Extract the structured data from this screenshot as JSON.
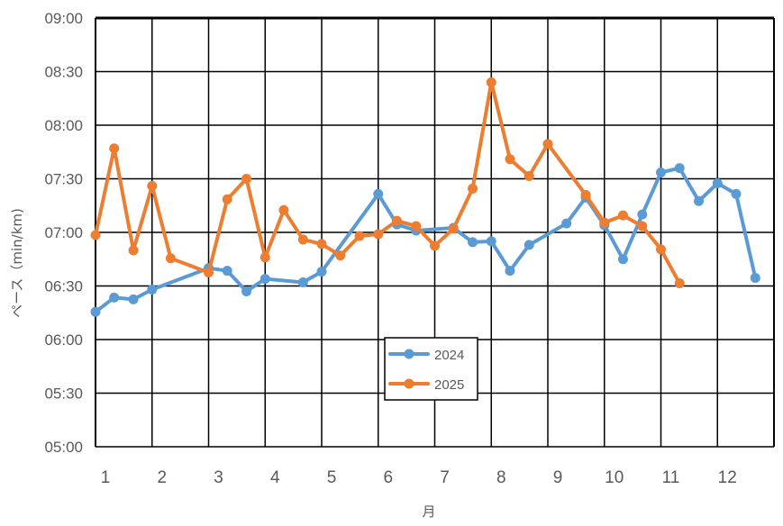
{
  "chart_data": {
    "type": "line",
    "xlabel": "月",
    "ylabel": "ペース（min/km)",
    "x_ticks": [
      "1",
      "2",
      "3",
      "4",
      "5",
      "6",
      "7",
      "8",
      "9",
      "10",
      "11",
      "12"
    ],
    "xlim": [
      1,
      13
    ],
    "y_ticks": [
      "05:00",
      "05:30",
      "06:00",
      "06:30",
      "07:00",
      "07:30",
      "08:00",
      "08:30",
      "09:00"
    ],
    "ylim_minutes": [
      300,
      540
    ],
    "grid": true,
    "legend_position": "bottom-center",
    "series": [
      {
        "name": "2024",
        "color": "#5b9bd5",
        "points": [
          [
            1.0,
            375.5
          ],
          [
            1.33,
            383.5
          ],
          [
            1.67,
            382.5
          ],
          [
            2.0,
            388.0
          ],
          [
            3.0,
            400.0
          ],
          [
            3.33,
            398.5
          ],
          [
            3.67,
            387.0
          ],
          [
            4.0,
            394.0
          ],
          [
            4.67,
            392.0
          ],
          [
            5.0,
            398.0
          ],
          [
            6.0,
            441.5
          ],
          [
            6.33,
            424.5
          ],
          [
            6.67,
            421.0
          ],
          [
            7.33,
            422.5
          ],
          [
            7.67,
            414.5
          ],
          [
            8.0,
            415.0
          ],
          [
            8.33,
            398.5
          ],
          [
            8.67,
            413.0
          ],
          [
            9.33,
            425.0
          ],
          [
            9.67,
            439.5
          ],
          [
            10.0,
            424.0
          ],
          [
            10.33,
            405.0
          ],
          [
            10.67,
            430.0
          ],
          [
            11.0,
            453.5
          ],
          [
            11.33,
            456.0
          ],
          [
            11.67,
            437.5
          ],
          [
            12.0,
            447.5
          ],
          [
            12.33,
            441.5
          ],
          [
            12.67,
            394.5
          ]
        ]
      },
      {
        "name": "2025",
        "color": "#ed7d31",
        "points": [
          [
            1.0,
            418.5
          ],
          [
            1.33,
            467.0
          ],
          [
            1.67,
            410.0
          ],
          [
            2.0,
            446.0
          ],
          [
            2.33,
            405.5
          ],
          [
            3.0,
            397.5
          ],
          [
            3.33,
            438.5
          ],
          [
            3.67,
            450.0
          ],
          [
            4.0,
            406.0
          ],
          [
            4.33,
            432.5
          ],
          [
            4.67,
            416.0
          ],
          [
            5.0,
            413.5
          ],
          [
            5.33,
            407.0
          ],
          [
            5.67,
            418.0
          ],
          [
            6.0,
            419.0
          ],
          [
            6.33,
            426.5
          ],
          [
            6.67,
            423.5
          ],
          [
            7.0,
            412.5
          ],
          [
            7.33,
            422.0
          ],
          [
            7.67,
            444.5
          ],
          [
            8.0,
            504.0
          ],
          [
            8.33,
            461.0
          ],
          [
            8.67,
            451.5
          ],
          [
            9.0,
            469.5
          ],
          [
            9.67,
            441.0
          ],
          [
            10.0,
            425.5
          ],
          [
            10.33,
            429.5
          ],
          [
            10.67,
            423.5
          ],
          [
            11.0,
            410.5
          ],
          [
            11.33,
            391.5
          ]
        ]
      }
    ]
  }
}
